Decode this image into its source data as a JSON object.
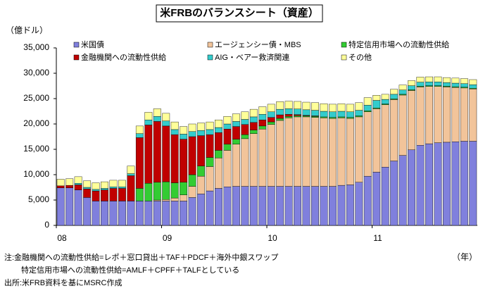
{
  "chart_data": {
    "type": "stacked_bar",
    "title": "米FRBのバランスシート（資産）",
    "y_axis_label": "（億ドル）",
    "x_axis_label": "（年）",
    "notes": [
      "注:金融機関への流動性供給=レポ＋窓口貸出＋TAF＋PDCF＋海外中銀スワップ",
      "特定信用市場への流動性供給=AMLF＋CPFF＋TALFとしている",
      "出所:米FRB資料を基にMSRC作成"
    ],
    "categories": [
      "08",
      null,
      null,
      null,
      null,
      null,
      null,
      null,
      null,
      null,
      null,
      null,
      "09",
      null,
      null,
      null,
      null,
      null,
      null,
      null,
      null,
      null,
      null,
      null,
      "10",
      null,
      null,
      null,
      null,
      null,
      null,
      null,
      null,
      null,
      null,
      null,
      "11",
      null,
      null,
      null,
      null,
      null,
      null,
      null,
      null,
      null,
      null,
      null
    ],
    "ylim": [
      0,
      35000
    ],
    "yticks": [
      0,
      {
        "value": 5000,
        "label": "5,000"
      },
      {
        "value": 10000,
        "label": "10,000"
      },
      {
        "value": 15000,
        "label": "15,000"
      },
      {
        "value": 20000,
        "label": "20,000"
      },
      {
        "value": 25000,
        "label": "25,000"
      },
      {
        "value": 30000,
        "label": "30,000"
      },
      {
        "value": 35000,
        "label": "35,000"
      }
    ],
    "series": [
      {
        "name": "米国債",
        "color": "#8080dd",
        "values": [
          7400,
          7400,
          7000,
          5500,
          4800,
          4800,
          4800,
          4800,
          4800,
          4800,
          4800,
          4800,
          4800,
          4800,
          4800,
          5500,
          6200,
          6800,
          7300,
          7600,
          7700,
          7700,
          7700,
          7700,
          7700,
          7700,
          7700,
          7700,
          7700,
          7700,
          7700,
          7700,
          7900,
          8000,
          8500,
          9700,
          10500,
          11500,
          12700,
          13800,
          14900,
          15800,
          16100,
          16300,
          16400,
          16500,
          16600,
          16600
        ]
      },
      {
        "name": "エージェンシー債・MBS",
        "color": "#f2c49a",
        "values": [
          0,
          0,
          0,
          0,
          0,
          0,
          0,
          0,
          0,
          0,
          0,
          200,
          300,
          600,
          1200,
          2200,
          3500,
          4800,
          6000,
          7200,
          8300,
          9400,
          10400,
          11300,
          12200,
          13000,
          13500,
          13700,
          13700,
          13600,
          13500,
          13400,
          13300,
          13100,
          12900,
          12700,
          12500,
          12300,
          12100,
          11900,
          11700,
          11500,
          11300,
          11100,
          10900,
          10700,
          10500,
          10300
        ]
      },
      {
        "name": "特定信用市場への流動性供給",
        "color": "#33cc33",
        "values": [
          0,
          0,
          0,
          0,
          0,
          0,
          0,
          0,
          0,
          2500,
          3500,
          3500,
          3500,
          3000,
          2500,
          2300,
          2000,
          1800,
          1500,
          1200,
          1000,
          800,
          700,
          600,
          500,
          400,
          300,
          250,
          200,
          200,
          200,
          200,
          200,
          200,
          200,
          200,
          150,
          150,
          150,
          150,
          150,
          150,
          150,
          150,
          150,
          150,
          150,
          150
        ]
      },
      {
        "name": "金融機関への流動性供給",
        "color": "#c00000",
        "values": [
          400,
          500,
          1000,
          1700,
          2000,
          2200,
          2500,
          2500,
          5000,
          10000,
          11500,
          12000,
          11000,
          9500,
          8500,
          7500,
          6000,
          4500,
          3500,
          3000,
          2500,
          2000,
          1500,
          1200,
          900,
          700,
          400,
          200,
          100,
          100,
          0,
          0,
          0,
          0,
          0,
          0,
          0,
          0,
          0,
          0,
          0,
          0,
          0,
          0,
          0,
          0,
          0,
          0
        ]
      },
      {
        "name": "AIG・ベアー救済関連",
        "color": "#33cccc",
        "values": [
          0,
          0,
          300,
          300,
          300,
          300,
          300,
          300,
          400,
          800,
          1000,
          1000,
          1000,
          1000,
          1000,
          1000,
          1000,
          1000,
          1000,
          1000,
          1000,
          1000,
          1100,
          1100,
          1100,
          1100,
          1100,
          1100,
          1100,
          1100,
          1100,
          1100,
          1100,
          1100,
          1100,
          1100,
          1500,
          900,
          900,
          850,
          800,
          800,
          750,
          750,
          700,
          700,
          700,
          700
        ]
      },
      {
        "name": "その他",
        "color": "#ffff99",
        "values": [
          1300,
          1300,
          1300,
          1300,
          1300,
          1300,
          1300,
          1300,
          1500,
          1500,
          1500,
          1500,
          1500,
          1500,
          1500,
          1500,
          1500,
          1500,
          1500,
          1500,
          1500,
          1500,
          1500,
          1500,
          1500,
          1500,
          1500,
          1500,
          1500,
          1500,
          1500,
          1500,
          1500,
          1500,
          1500,
          1500,
          1000,
          1000,
          1000,
          1000,
          1000,
          1000,
          1000,
          1000,
          1000,
          1000,
          1000,
          1000
        ]
      }
    ]
  }
}
